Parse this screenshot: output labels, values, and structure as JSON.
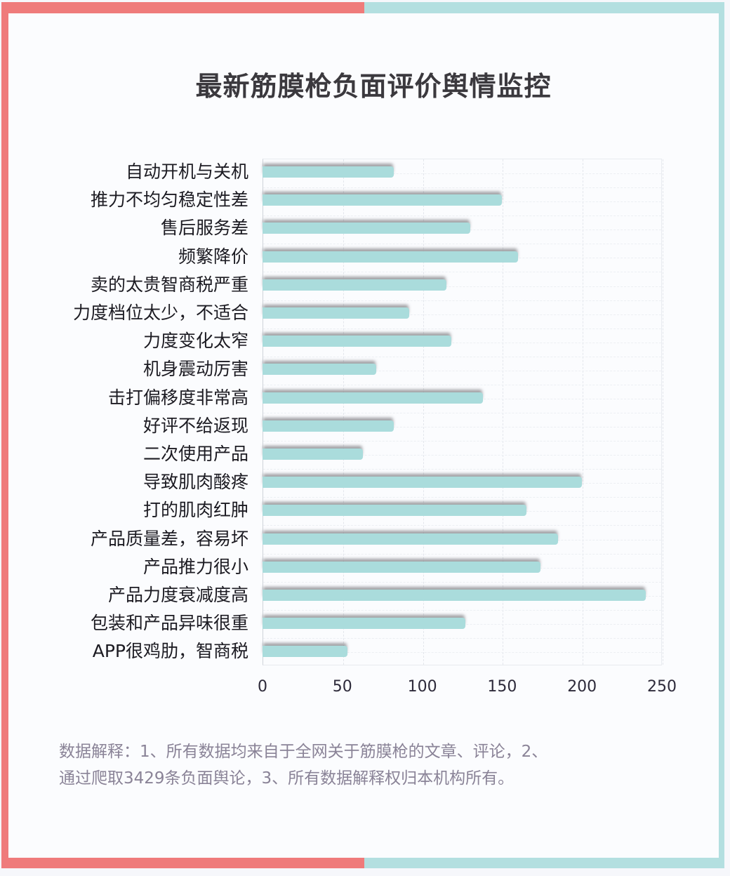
{
  "title": "最新筋膜枪负面评价舆情监控",
  "frame_colors": {
    "left_accent": "#ef7b7b",
    "right_accent": "#b3dfe0",
    "bar": "#aadcdc"
  },
  "chart_data": {
    "type": "bar",
    "orientation": "horizontal",
    "title": "最新筋膜枪负面评价舆情监控",
    "xlabel": "",
    "ylabel": "",
    "xlim": [
      0,
      250
    ],
    "xticks": [
      0,
      50,
      100,
      150,
      200,
      250
    ],
    "grid": true,
    "legend": null,
    "categories": [
      "自动开机与关机",
      "推力不均匀稳定性差",
      "售后服务差",
      "频繁降价",
      "卖的太贵智商税严重",
      "力度档位太少，不适合",
      "力度变化太窄",
      "机身震动厉害",
      "击打偏移度非常高",
      "好评不给返现",
      "二次使用产品",
      "导致肌肉酸疼",
      "打的肌肉红肿",
      "产品质量差，容易坏",
      "产品推力很小",
      "产品力度衰减度高",
      "包装和产品异味很重",
      "APP很鸡肋，智商税"
    ],
    "values": [
      82,
      150,
      130,
      160,
      115,
      92,
      118,
      71,
      138,
      82,
      63,
      200,
      165,
      185,
      174,
      240,
      127,
      53
    ]
  },
  "axis": {
    "ticks": [
      "0",
      "50",
      "100",
      "150",
      "200",
      "250"
    ]
  },
  "note": {
    "line1": "数据解释：1、所有数据均来自于全网关于筋膜枪的文章、评论，2、",
    "line2": "通过爬取3429条负面舆论，3、所有数据解释权归本机构所有。"
  }
}
